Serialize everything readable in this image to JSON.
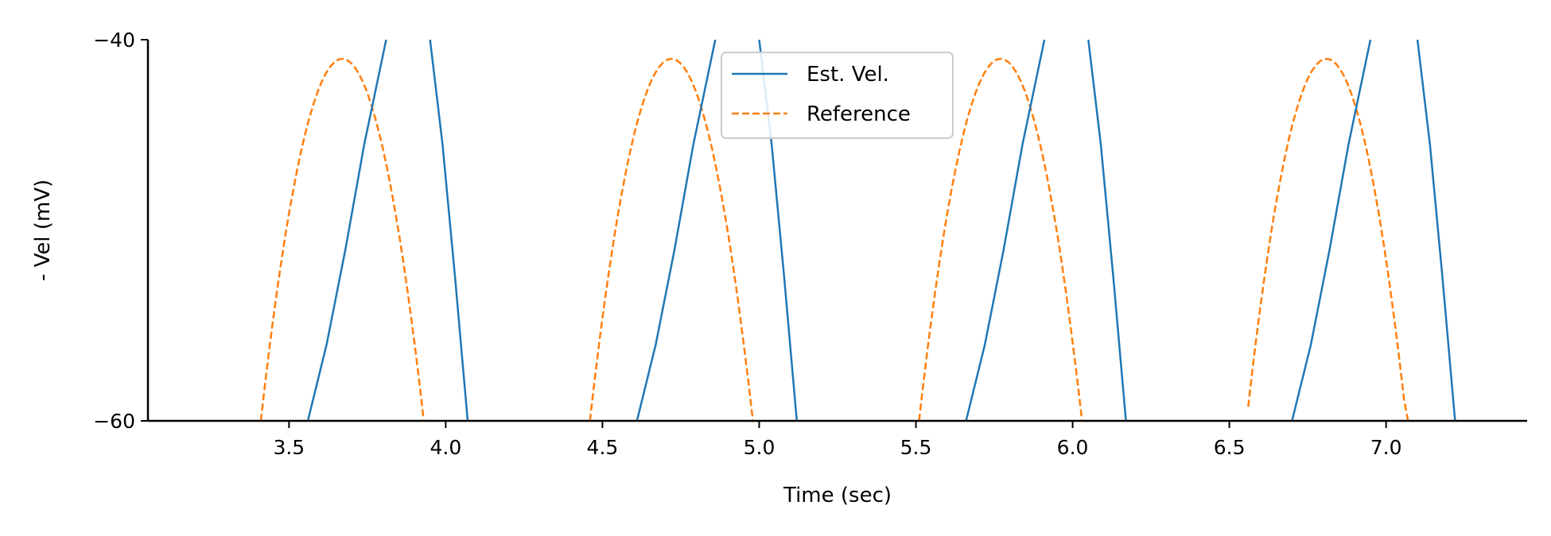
{
  "chart_data": {
    "type": "line",
    "title": "",
    "xlabel": "Time (sec)",
    "ylabel": "- Vel (mV)",
    "xlim": [
      3.05,
      7.45
    ],
    "ylim": [
      -60,
      -40
    ],
    "xticks": [
      3.5,
      4.0,
      4.5,
      5.0,
      5.5,
      6.0,
      6.5,
      7.0
    ],
    "xtick_labels": [
      "3.5",
      "4.0",
      "4.5",
      "5.0",
      "5.5",
      "6.0",
      "6.5",
      "7.0"
    ],
    "yticks": [
      -60,
      -40
    ],
    "ytick_labels": [
      "−60",
      "−40"
    ],
    "grid": false,
    "legend_position": "top-center",
    "series": [
      {
        "name": "Est. Vel.",
        "color": "#1f77b4",
        "style": "solid",
        "segments": [
          {
            "x": [
              3.56,
              3.62,
              3.68,
              3.74,
              3.81
            ],
            "y": [
              -60,
              -56.0,
              -51.0,
              -45.5,
              -40
            ]
          },
          {
            "x": [
              3.95,
              3.99,
              4.03,
              4.07
            ],
            "y": [
              -40,
              -45.5,
              -52.5,
              -60
            ]
          },
          {
            "x": [
              4.61,
              4.67,
              4.73,
              4.79,
              4.86
            ],
            "y": [
              -60,
              -56.0,
              -51.0,
              -45.5,
              -40
            ]
          },
          {
            "x": [
              5.0,
              5.04,
              5.08,
              5.12
            ],
            "y": [
              -40,
              -45.5,
              -52.5,
              -60
            ]
          },
          {
            "x": [
              5.66,
              5.72,
              5.78,
              5.84,
              5.91
            ],
            "y": [
              -60,
              -56.0,
              -51.0,
              -45.5,
              -40
            ]
          },
          {
            "x": [
              6.05,
              6.09,
              6.13,
              6.17
            ],
            "y": [
              -40,
              -45.5,
              -52.5,
              -60
            ]
          },
          {
            "x": [
              6.7,
              6.76,
              6.82,
              6.88,
              6.95
            ],
            "y": [
              -60,
              -56.0,
              -51.0,
              -45.5,
              -40
            ]
          },
          {
            "x": [
              7.1,
              7.14,
              7.18,
              7.22
            ],
            "y": [
              -40,
              -45.5,
              -52.5,
              -60
            ]
          }
        ]
      },
      {
        "name": "Reference",
        "color": "#ff7f0e",
        "style": "dashed",
        "pulses": [
          {
            "start": 3.41,
            "peak_x": 3.67,
            "end": 3.93
          },
          {
            "start": 4.46,
            "peak_x": 4.72,
            "end": 4.98
          },
          {
            "start": 5.51,
            "peak_x": 5.77,
            "end": 6.03
          },
          {
            "start": 6.56,
            "peak_x": 6.81,
            "end": 7.07
          }
        ],
        "peak_y": -41.0
      }
    ]
  }
}
